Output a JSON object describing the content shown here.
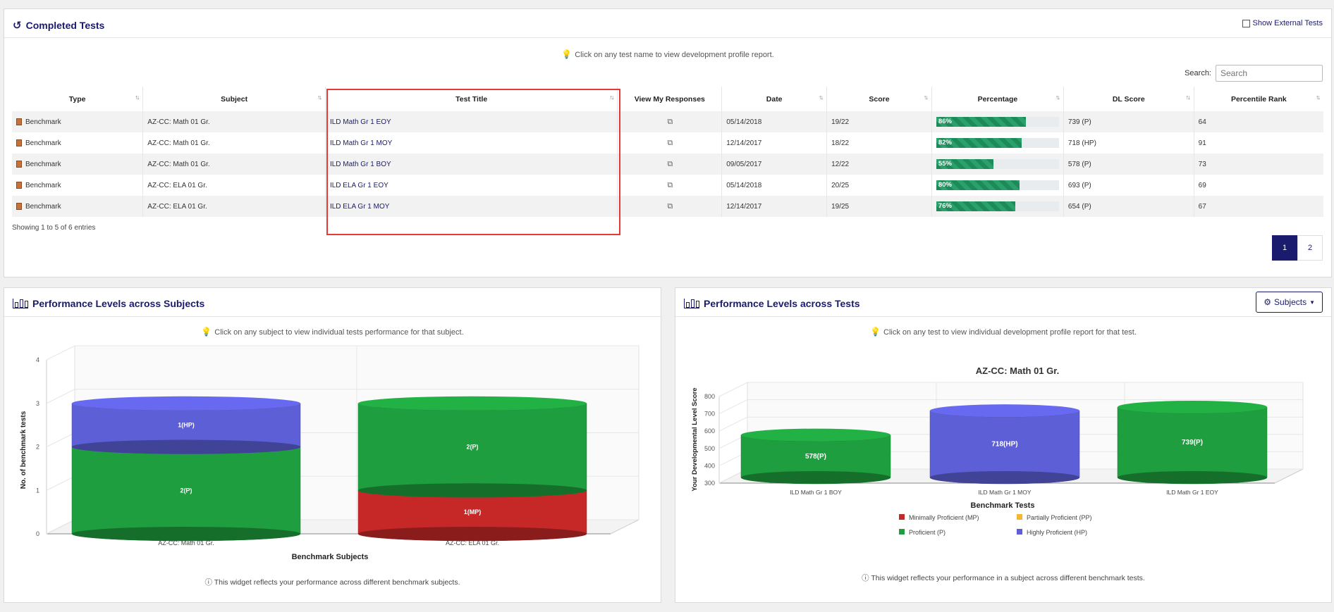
{
  "completed": {
    "title": "Completed Tests",
    "show_external_label": "Show External Tests",
    "hint": "Click on any test name to view development profile report.",
    "search_label": "Search:",
    "search_placeholder": "Search",
    "columns": [
      "Type",
      "Subject",
      "Test Title",
      "View My Responses",
      "Date",
      "Score",
      "Percentage",
      "DL Score",
      "Percentile Rank"
    ],
    "rows": [
      {
        "type": "Benchmark",
        "subject": "AZ-CC: Math 01 Gr.",
        "title": "ILD Math Gr 1 EOY",
        "date": "05/14/2018",
        "score": "19/22",
        "percentage": 86,
        "percentage_label": "86%",
        "dl": "739  (P)",
        "rank": "64"
      },
      {
        "type": "Benchmark",
        "subject": "AZ-CC: Math 01 Gr.",
        "title": "ILD Math Gr 1 MOY",
        "date": "12/14/2017",
        "score": "18/22",
        "percentage": 82,
        "percentage_label": "82%",
        "dl": "718  (HP)",
        "rank": "91"
      },
      {
        "type": "Benchmark",
        "subject": "AZ-CC: Math 01 Gr.",
        "title": "ILD Math Gr 1 BOY",
        "date": "09/05/2017",
        "score": "12/22",
        "percentage": 55,
        "percentage_label": "55%",
        "dl": "578  (P)",
        "rank": "73"
      },
      {
        "type": "Benchmark",
        "subject": "AZ-CC: ELA 01 Gr.",
        "title": "ILD ELA Gr 1 EOY",
        "date": "05/14/2018",
        "score": "20/25",
        "percentage": 80,
        "percentage_label": "80%",
        "dl": "693  (P)",
        "rank": "69"
      },
      {
        "type": "Benchmark",
        "subject": "AZ-CC: ELA 01 Gr.",
        "title": "ILD ELA Gr 1 MOY",
        "date": "12/14/2017",
        "score": "19/25",
        "percentage": 76,
        "percentage_label": "76%",
        "dl": "654  (P)",
        "rank": "67"
      }
    ],
    "showing": "Showing 1 to 5 of 6 entries",
    "pages": [
      "1",
      "2"
    ]
  },
  "subjects_panel": {
    "title": "Performance Levels across Subjects",
    "hint": "Click on any subject to view individual tests performance for that subject.",
    "note": "This widget reflects your performance across different benchmark subjects."
  },
  "tests_panel": {
    "title": "Performance Levels across Tests",
    "button_label": "Subjects",
    "hint": "Click on any test to view individual development profile report for that test.",
    "note": "This widget reflects your performance in a subject across different benchmark tests."
  },
  "chart_data": [
    {
      "type": "bar",
      "stacked": true,
      "categories": [
        "AZ-CC: Math 01 Gr.",
        "AZ-CC: ELA 01 Gr."
      ],
      "series": [
        {
          "name": "Minimally Proficient (MP)",
          "values": [
            0,
            1
          ],
          "labels": [
            "",
            "1(MP)"
          ],
          "color": "#c62828"
        },
        {
          "name": "Proficient (P)",
          "values": [
            2,
            2
          ],
          "labels": [
            "2(P)",
            "2(P)"
          ],
          "color": "#1e9e3e"
        },
        {
          "name": "Highly Proficient (HP)",
          "values": [
            1,
            0
          ],
          "labels": [
            "1(HP)",
            ""
          ],
          "color": "#5c5fd6"
        }
      ],
      "title": "",
      "xlabel": "Benchmark Subjects",
      "ylabel": "No. of benchmark tests",
      "ylim": [
        0,
        4
      ],
      "yticks": [
        "0",
        "1",
        "2",
        "3",
        "4"
      ],
      "grid": true
    },
    {
      "type": "bar",
      "categories": [
        "ILD Math Gr 1 BOY",
        "ILD Math Gr 1 MOY",
        "ILD Math Gr 1 EOY"
      ],
      "values": [
        578,
        718,
        739
      ],
      "labels": [
        "578(P)",
        "718(HP)",
        "739(P)"
      ],
      "colors": [
        "#1e9e3e",
        "#5c5fd6",
        "#1e9e3e"
      ],
      "title": "AZ-CC: Math 01 Gr.",
      "xlabel": "Benchmark Tests",
      "ylabel": "Your Developmental Level Score",
      "ylim": [
        300,
        800
      ],
      "yticks": [
        "300",
        "400",
        "500",
        "600",
        "700",
        "800"
      ],
      "grid": true,
      "legend": [
        {
          "name": "Minimally Proficient (MP)",
          "color": "#c62828"
        },
        {
          "name": "Partially Proficient (PP)",
          "color": "#f5b731"
        },
        {
          "name": "Proficient (P)",
          "color": "#1e9e3e"
        },
        {
          "name": "Highly Proficient (HP)",
          "color": "#5c5fd6"
        }
      ],
      "legend_position": "bottom"
    }
  ]
}
